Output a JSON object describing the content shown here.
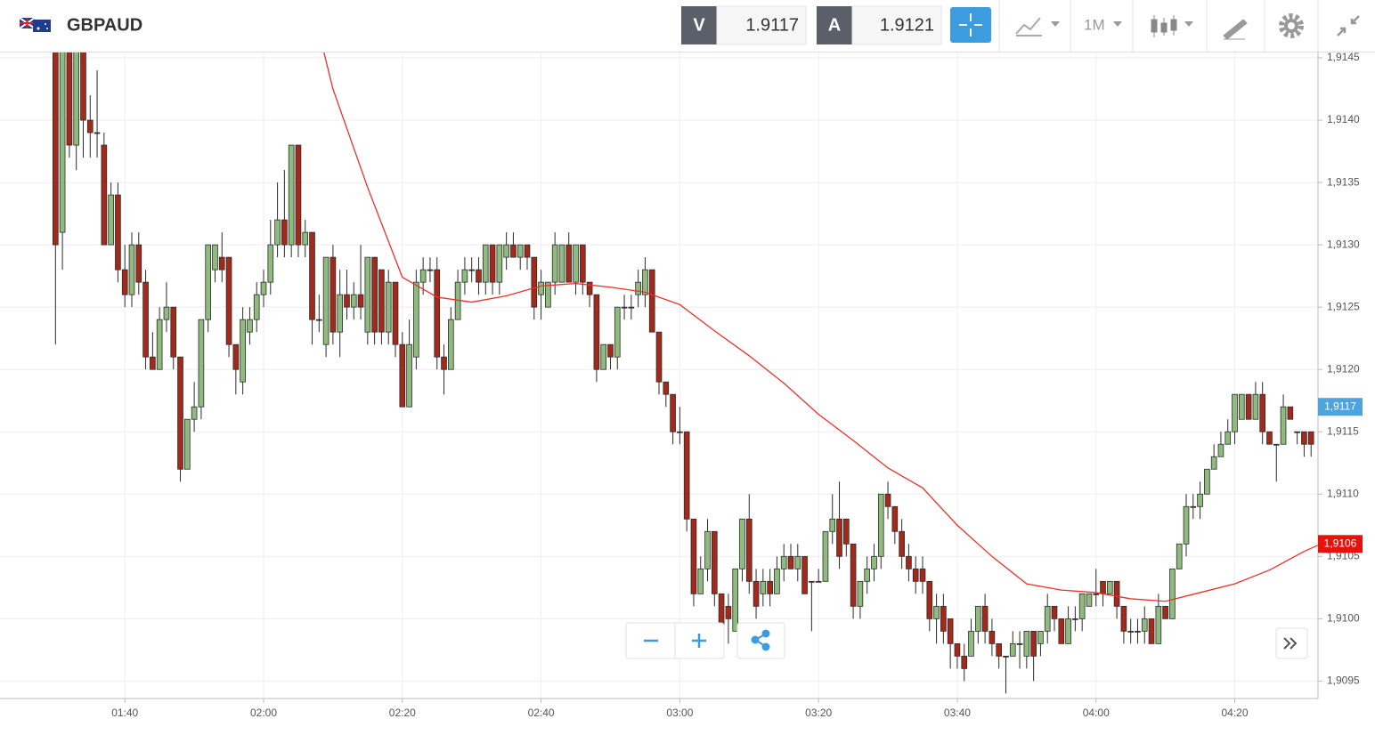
{
  "toolbar": {
    "symbol": "GBPAUD",
    "sell_label": "V",
    "sell_price": "1.9117",
    "buy_label": "A",
    "buy_price": "1.9121",
    "timeframe": "1M"
  },
  "chart_data": {
    "type": "candlestick",
    "x": [
      90,
      91,
      92,
      93,
      94,
      95,
      96,
      97,
      98,
      99,
      100,
      101,
      102,
      103,
      104,
      105,
      106,
      107,
      108,
      109,
      110,
      111,
      112,
      113,
      114,
      115,
      116,
      117,
      118,
      119,
      120,
      121,
      122,
      123,
      124,
      125,
      126,
      127,
      128,
      129,
      130,
      131,
      132,
      133,
      134,
      135,
      136,
      137,
      138,
      139,
      140,
      141,
      142,
      143,
      144,
      145,
      146,
      147,
      148,
      149,
      150,
      151,
      152,
      153,
      154,
      155,
      156,
      157,
      158,
      159,
      160,
      161,
      162,
      163,
      164,
      165,
      166,
      167,
      168,
      169,
      170,
      171,
      172,
      173,
      174,
      175,
      176,
      177,
      178,
      179,
      180,
      181,
      182,
      183,
      184,
      185,
      186,
      187,
      188,
      189,
      190,
      191,
      192,
      193,
      194,
      195,
      196,
      197,
      198,
      199,
      200,
      201,
      202,
      203,
      204,
      205,
      206,
      207,
      208,
      209,
      210,
      211,
      212,
      213,
      214,
      215,
      216,
      217,
      218,
      219,
      220,
      221,
      222,
      223,
      224,
      225,
      226,
      227,
      228,
      229,
      230,
      231,
      232,
      233,
      234,
      235,
      236,
      237,
      238,
      239,
      240,
      241,
      242,
      243,
      244,
      245,
      246,
      247,
      248,
      249,
      250,
      251,
      252,
      253,
      254,
      255,
      256,
      257,
      258,
      259,
      260,
      261,
      262,
      263,
      264,
      265,
      266,
      267,
      268,
      269,
      270,
      271
    ],
    "ohlc": [
      [
        1.9148,
        1.915,
        1.9122,
        1.913
      ],
      [
        1.9131,
        1.915,
        1.9128,
        1.9147
      ],
      [
        1.9147,
        1.915,
        1.9137,
        1.9138
      ],
      [
        1.9138,
        1.9149,
        1.9136,
        1.9147
      ],
      [
        1.9146,
        1.9148,
        1.9137,
        1.914
      ],
      [
        1.914,
        1.9142,
        1.9137,
        1.9139
      ],
      [
        1.9139,
        1.9144,
        1.9137,
        1.9139
      ],
      [
        1.9138,
        1.9139,
        1.913,
        1.913
      ],
      [
        1.913,
        1.9135,
        1.913,
        1.9134
      ],
      [
        1.9134,
        1.9135,
        1.9127,
        1.9128
      ],
      [
        1.9128,
        1.913,
        1.9125,
        1.9126
      ],
      [
        1.9126,
        1.9131,
        1.9125,
        1.913
      ],
      [
        1.913,
        1.9131,
        1.9126,
        1.9127
      ],
      [
        1.9127,
        1.9128,
        1.912,
        1.9121
      ],
      [
        1.9121,
        1.9123,
        1.912,
        1.912
      ],
      [
        1.912,
        1.9125,
        1.912,
        1.9124
      ],
      [
        1.9124,
        1.9127,
        1.9123,
        1.9125
      ],
      [
        1.9125,
        1.9125,
        1.912,
        1.9121
      ],
      [
        1.9121,
        1.9121,
        1.9111,
        1.9112
      ],
      [
        1.9112,
        1.9116,
        1.9112,
        1.9116
      ],
      [
        1.9116,
        1.9119,
        1.9115,
        1.9117
      ],
      [
        1.9117,
        1.9124,
        1.9116,
        1.9124
      ],
      [
        1.9124,
        1.913,
        1.9123,
        1.913
      ],
      [
        1.9128,
        1.913,
        1.9127,
        1.913
      ],
      [
        1.9129,
        1.9131,
        1.9127,
        1.9128
      ],
      [
        1.9129,
        1.9129,
        1.9121,
        1.9122
      ],
      [
        1.9122,
        1.9122,
        1.9118,
        1.912
      ],
      [
        1.9119,
        1.9125,
        1.9118,
        1.9124
      ],
      [
        1.9123,
        1.9125,
        1.9122,
        1.9124
      ],
      [
        1.9124,
        1.9127,
        1.9123,
        1.9126
      ],
      [
        1.9126,
        1.9128,
        1.9125,
        1.9127
      ],
      [
        1.9127,
        1.9132,
        1.9126,
        1.913
      ],
      [
        1.913,
        1.9135,
        1.9129,
        1.9132
      ],
      [
        1.9132,
        1.9136,
        1.9129,
        1.913
      ],
      [
        1.913,
        1.9138,
        1.9129,
        1.9138
      ],
      [
        1.9138,
        1.9138,
        1.9129,
        1.913
      ],
      [
        1.913,
        1.9132,
        1.9129,
        1.9131
      ],
      [
        1.9131,
        1.9131,
        1.9122,
        1.9124
      ],
      [
        1.9124,
        1.9126,
        1.9123,
        1.9124
      ],
      [
        1.9122,
        1.9129,
        1.9121,
        1.9129
      ],
      [
        1.9129,
        1.913,
        1.9122,
        1.9123
      ],
      [
        1.9123,
        1.9128,
        1.9121,
        1.9126
      ],
      [
        1.9126,
        1.9128,
        1.9124,
        1.9125
      ],
      [
        1.9125,
        1.9127,
        1.9124,
        1.9126
      ],
      [
        1.9126,
        1.913,
        1.9124,
        1.9125
      ],
      [
        1.9123,
        1.9129,
        1.9122,
        1.9129
      ],
      [
        1.9129,
        1.9129,
        1.9122,
        1.9123
      ],
      [
        1.9128,
        1.9128,
        1.9122,
        1.9123
      ],
      [
        1.9123,
        1.9128,
        1.9122,
        1.9127
      ],
      [
        1.9127,
        1.9127,
        1.9121,
        1.9122
      ],
      [
        1.9122,
        1.9123,
        1.9117,
        1.9117
      ],
      [
        1.9117,
        1.9124,
        1.9117,
        1.9122
      ],
      [
        1.9121,
        1.9128,
        1.912,
        1.9127
      ],
      [
        1.9127,
        1.9129,
        1.9126,
        1.9128
      ],
      [
        1.9128,
        1.9129,
        1.9127,
        1.9128
      ],
      [
        1.9128,
        1.9129,
        1.912,
        1.9121
      ],
      [
        1.9121,
        1.9122,
        1.9118,
        1.912
      ],
      [
        1.912,
        1.9125,
        1.912,
        1.9124
      ],
      [
        1.9124,
        1.9128,
        1.9124,
        1.9127
      ],
      [
        1.9127,
        1.9129,
        1.9126,
        1.9128
      ],
      [
        1.9128,
        1.9129,
        1.9127,
        1.9128
      ],
      [
        1.9128,
        1.9129,
        1.9126,
        1.9127
      ],
      [
        1.9127,
        1.913,
        1.9126,
        1.913
      ],
      [
        1.913,
        1.913,
        1.9126,
        1.9127
      ],
      [
        1.9127,
        1.913,
        1.9126,
        1.913
      ],
      [
        1.9129,
        1.9131,
        1.9128,
        1.913
      ],
      [
        1.913,
        1.9131,
        1.9129,
        1.9129
      ],
      [
        1.9129,
        1.913,
        1.9128,
        1.913
      ],
      [
        1.913,
        1.913,
        1.9128,
        1.9129
      ],
      [
        1.9129,
        1.9129,
        1.9124,
        1.9125
      ],
      [
        1.9126,
        1.9128,
        1.9124,
        1.9127
      ],
      [
        1.9125,
        1.9127,
        1.9125,
        1.9127
      ],
      [
        1.9127,
        1.9131,
        1.9126,
        1.913
      ],
      [
        1.9127,
        1.913,
        1.9127,
        1.913
      ],
      [
        1.913,
        1.9131,
        1.9127,
        1.9127
      ],
      [
        1.9127,
        1.913,
        1.9126,
        1.913
      ],
      [
        1.913,
        1.913,
        1.9126,
        1.9127
      ],
      [
        1.9127,
        1.9127,
        1.9125,
        1.9126
      ],
      [
        1.9126,
        1.9126,
        1.9119,
        1.912
      ],
      [
        1.912,
        1.9122,
        1.912,
        1.9122
      ],
      [
        1.9122,
        1.9122,
        1.912,
        1.9121
      ],
      [
        1.9121,
        1.9125,
        1.912,
        1.9125
      ],
      [
        1.9125,
        1.9126,
        1.9124,
        1.9125
      ],
      [
        1.9125,
        1.9126,
        1.9124,
        1.9125
      ],
      [
        1.9126,
        1.9128,
        1.9125,
        1.9127
      ],
      [
        1.9126,
        1.9129,
        1.9125,
        1.9128
      ],
      [
        1.9128,
        1.9128,
        1.9123,
        1.9123
      ],
      [
        1.9123,
        1.9123,
        1.9118,
        1.9119
      ],
      [
        1.9119,
        1.9119,
        1.9117,
        1.9118
      ],
      [
        1.9118,
        1.9118,
        1.9114,
        1.9115
      ],
      [
        1.9115,
        1.9117,
        1.9114,
        1.9115
      ],
      [
        1.9115,
        1.9115,
        1.9107,
        1.9108
      ],
      [
        1.9108,
        1.9108,
        1.9101,
        1.9102
      ],
      [
        1.9102,
        1.9105,
        1.9102,
        1.9104
      ],
      [
        1.9104,
        1.9108,
        1.9103,
        1.9107
      ],
      [
        1.9107,
        1.9107,
        1.9101,
        1.9102
      ],
      [
        1.9102,
        1.9102,
        1.9098,
        1.9099
      ],
      [
        1.9101,
        1.9102,
        1.9098,
        1.91
      ],
      [
        1.9099,
        1.9104,
        1.9099,
        1.9104
      ],
      [
        1.9104,
        1.9108,
        1.9103,
        1.9108
      ],
      [
        1.9108,
        1.911,
        1.9102,
        1.9103
      ],
      [
        1.9103,
        1.9104,
        1.91,
        1.9101
      ],
      [
        1.9102,
        1.9104,
        1.9101,
        1.9103
      ],
      [
        1.9103,
        1.9104,
        1.9101,
        1.9102
      ],
      [
        1.9102,
        1.9105,
        1.9102,
        1.9104
      ],
      [
        1.9104,
        1.9106,
        1.9103,
        1.9105
      ],
      [
        1.9105,
        1.9106,
        1.9104,
        1.9104
      ],
      [
        1.9104,
        1.9106,
        1.9103,
        1.9105
      ],
      [
        1.9105,
        1.9105,
        1.9102,
        1.9102
      ],
      [
        1.9103,
        1.9103,
        1.9099,
        1.9103
      ],
      [
        1.9103,
        1.9104,
        1.9103,
        1.9103
      ],
      [
        1.9103,
        1.9107,
        1.9103,
        1.9107
      ],
      [
        1.9107,
        1.911,
        1.9106,
        1.9108
      ],
      [
        1.9108,
        1.9111,
        1.9104,
        1.9105
      ],
      [
        1.9108,
        1.9108,
        1.9105,
        1.9106
      ],
      [
        1.9106,
        1.9106,
        1.91,
        1.9101
      ],
      [
        1.9101,
        1.9103,
        1.91,
        1.9103
      ],
      [
        1.9103,
        1.9105,
        1.9102,
        1.9104
      ],
      [
        1.9104,
        1.9106,
        1.9103,
        1.9105
      ],
      [
        1.9105,
        1.911,
        1.9104,
        1.911
      ],
      [
        1.911,
        1.9111,
        1.9108,
        1.9109
      ],
      [
        1.9109,
        1.9109,
        1.9106,
        1.9107
      ],
      [
        1.9107,
        1.9108,
        1.9104,
        1.9105
      ],
      [
        1.9105,
        1.9106,
        1.9103,
        1.9104
      ],
      [
        1.9104,
        1.9105,
        1.9102,
        1.9103
      ],
      [
        1.9104,
        1.9105,
        1.9102,
        1.9103
      ],
      [
        1.9103,
        1.9103,
        1.9099,
        1.91
      ],
      [
        1.91,
        1.9102,
        1.9098,
        1.9101
      ],
      [
        1.9101,
        1.9102,
        1.9098,
        1.9099
      ],
      [
        1.91,
        1.91,
        1.9096,
        1.9098
      ],
      [
        1.9098,
        1.9098,
        1.9096,
        1.9097
      ],
      [
        1.9097,
        1.9098,
        1.9095,
        1.9096
      ],
      [
        1.9097,
        1.91,
        1.9097,
        1.9099
      ],
      [
        1.9099,
        1.9101,
        1.9098,
        1.9101
      ],
      [
        1.9101,
        1.9102,
        1.9098,
        1.9099
      ],
      [
        1.9099,
        1.91,
        1.9097,
        1.9098
      ],
      [
        1.9098,
        1.9098,
        1.9096,
        1.9097
      ],
      [
        1.9097,
        1.9097,
        1.9094,
        1.9097
      ],
      [
        1.9097,
        1.9099,
        1.9097,
        1.9098
      ],
      [
        1.9098,
        1.9099,
        1.9096,
        1.9098
      ],
      [
        1.9097,
        1.9099,
        1.9096,
        1.9099
      ],
      [
        1.9099,
        1.9099,
        1.9095,
        1.9097
      ],
      [
        1.9098,
        1.9099,
        1.9097,
        1.9099
      ],
      [
        1.9099,
        1.9102,
        1.9098,
        1.9101
      ],
      [
        1.9101,
        1.9101,
        1.9099,
        1.91
      ],
      [
        1.91,
        1.91,
        1.9098,
        1.9098
      ],
      [
        1.9098,
        1.9101,
        1.9098,
        1.91
      ],
      [
        1.91,
        1.9101,
        1.9099,
        1.91
      ],
      [
        1.91,
        1.9102,
        1.9099,
        1.9102
      ],
      [
        1.9101,
        1.9102,
        1.9101,
        1.9102
      ],
      [
        1.9102,
        1.9104,
        1.9101,
        1.9102
      ],
      [
        1.9103,
        1.9103,
        1.9101,
        1.9102
      ],
      [
        1.9102,
        1.9103,
        1.9102,
        1.9103
      ],
      [
        1.9103,
        1.9103,
        1.91,
        1.9101
      ],
      [
        1.9101,
        1.9101,
        1.9098,
        1.9099
      ],
      [
        1.9099,
        1.91,
        1.9098,
        1.9099
      ],
      [
        1.9099,
        1.91,
        1.9098,
        1.9099
      ],
      [
        1.9099,
        1.9101,
        1.9098,
        1.91
      ],
      [
        1.91,
        1.91,
        1.9098,
        1.9098
      ],
      [
        1.9098,
        1.9102,
        1.9098,
        1.9101
      ],
      [
        1.9101,
        1.9101,
        1.91,
        1.91
      ],
      [
        1.91,
        1.9104,
        1.91,
        1.9104
      ],
      [
        1.9104,
        1.9106,
        1.9104,
        1.9106
      ],
      [
        1.9106,
        1.911,
        1.9105,
        1.9109
      ],
      [
        1.9109,
        1.911,
        1.9108,
        1.9109
      ],
      [
        1.9109,
        1.9111,
        1.9108,
        1.911
      ],
      [
        1.911,
        1.9112,
        1.911,
        1.9112
      ],
      [
        1.9112,
        1.9114,
        1.9112,
        1.9113
      ],
      [
        1.9113,
        1.9115,
        1.9113,
        1.9114
      ],
      [
        1.9114,
        1.9116,
        1.9114,
        1.9115
      ],
      [
        1.9115,
        1.9118,
        1.9114,
        1.9118
      ],
      [
        1.9116,
        1.9118,
        1.9116,
        1.9118
      ],
      [
        1.9118,
        1.9118,
        1.9116,
        1.9116
      ],
      [
        1.9116,
        1.9119,
        1.9116,
        1.9118
      ],
      [
        1.9118,
        1.9119,
        1.9114,
        1.9115
      ],
      [
        1.9115,
        1.9115,
        1.9114,
        1.9114
      ],
      [
        1.9114,
        1.9114,
        1.9111,
        1.9114
      ],
      [
        1.9114,
        1.9118,
        1.9114,
        1.9117
      ],
      [
        1.9117,
        1.9117,
        1.9116,
        1.9116
      ],
      [
        1.9115,
        1.9115,
        1.9114,
        1.9115
      ],
      [
        1.9115,
        1.9115,
        1.9113,
        1.9114
      ],
      [
        1.9115,
        1.9115,
        1.9113,
        1.9114
      ]
    ],
    "up_color": "#8fbc7e",
    "down_color": "#a3291b",
    "outline_color": "#2b2b2b",
    "ma": {
      "color": "#e8322a",
      "x": [
        128,
        130,
        135,
        140,
        145,
        150,
        155,
        160,
        165,
        170,
        175,
        180,
        185,
        190,
        195,
        200,
        205,
        210,
        215,
        220,
        225,
        230,
        235,
        240,
        245,
        250,
        255,
        260,
        265,
        270,
        272
      ],
      "values": [
        1.9147,
        1.91425,
        1.91346,
        1.91274,
        1.91258,
        1.91254,
        1.91259,
        1.91267,
        1.91269,
        1.91266,
        1.91262,
        1.91252,
        1.91231,
        1.91211,
        1.91189,
        1.91164,
        1.91143,
        1.91121,
        1.91105,
        1.91075,
        1.9105,
        1.91028,
        1.91023,
        1.91021,
        1.91016,
        1.91014,
        1.91021,
        1.91028,
        1.91039,
        1.91054,
        1.91059
      ]
    },
    "xlim": [
      82,
      272
    ],
    "xticks": [
      {
        "value": 100,
        "label": "01:40"
      },
      {
        "value": 120,
        "label": "02:00"
      },
      {
        "value": 140,
        "label": "02:20"
      },
      {
        "value": 160,
        "label": "02:40"
      },
      {
        "value": 180,
        "label": "03:00"
      },
      {
        "value": 200,
        "label": "03:20"
      },
      {
        "value": 220,
        "label": "03:40"
      },
      {
        "value": 240,
        "label": "04:00"
      },
      {
        "value": 260,
        "label": "04:20"
      }
    ],
    "ylim": [
      1.90936,
      1.91455
    ],
    "yticks": [
      {
        "value": 1.9095,
        "label": "1,9095"
      },
      {
        "value": 1.91,
        "label": "1,9100"
      },
      {
        "value": 1.9105,
        "label": "1,9105"
      },
      {
        "value": 1.911,
        "label": "1,9110"
      },
      {
        "value": 1.9115,
        "label": "1,9115"
      },
      {
        "value": 1.912,
        "label": "1,9120"
      },
      {
        "value": 1.9125,
        "label": "1,9125"
      },
      {
        "value": 1.913,
        "label": "1,9130"
      },
      {
        "value": 1.9135,
        "label": "1,9135"
      },
      {
        "value": 1.914,
        "label": "1,9140"
      },
      {
        "value": 1.9145,
        "label": "1,9145"
      }
    ],
    "grid": true,
    "price_badge": {
      "value": 1.9117,
      "label": "1,9117",
      "color": "#4da3dd"
    },
    "ma_badge": {
      "value": 1.9106,
      "label": "1,9106",
      "color": "#e8120c"
    }
  }
}
